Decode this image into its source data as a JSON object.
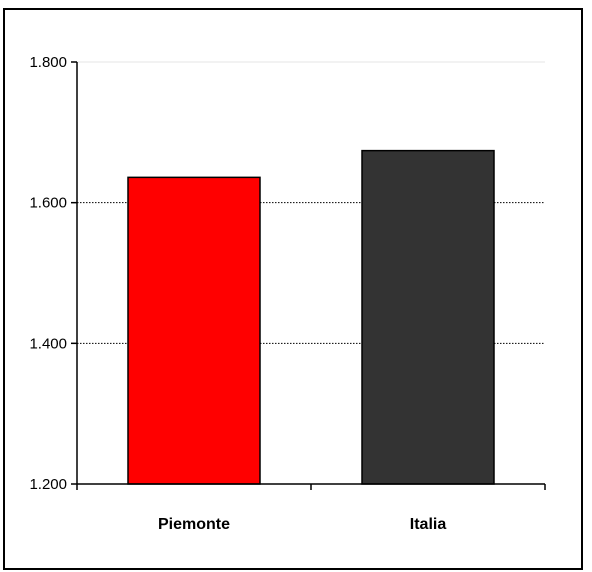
{
  "chart_data": {
    "type": "bar",
    "categories": [
      "Piemonte",
      "Italia"
    ],
    "values": [
      1636,
      1674
    ],
    "colors": [
      "#ff0000",
      "#333333"
    ],
    "ylim": [
      1200,
      1800
    ],
    "yticks": [
      1200,
      1400,
      1600,
      1800
    ],
    "ytick_labels": [
      "1.200",
      "1.400",
      "1.600",
      "1.800"
    ],
    "gridlines": "dotted, at 1.400 and 1.600"
  }
}
